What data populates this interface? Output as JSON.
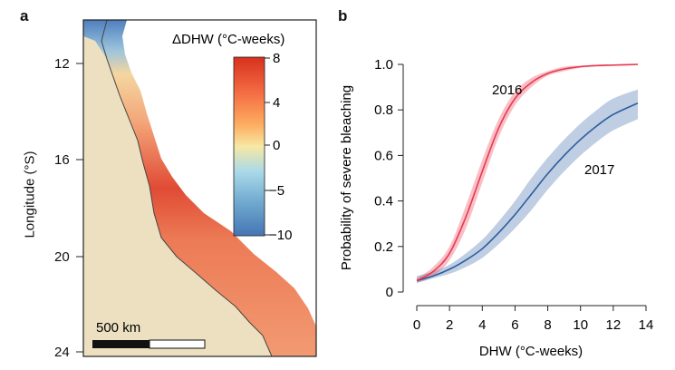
{
  "panel_a": {
    "letter": "a",
    "y_axis_title": "Longitude (°S)",
    "y_ticks": [
      "12",
      "16",
      "20",
      "24"
    ],
    "colorbar": {
      "title": "ΔDHW (°C-weeks)",
      "ticks": [
        "8",
        "4",
        "0",
        "−5",
        "−10"
      ],
      "colors": [
        "#d7301f",
        "#f46d43",
        "#fdae61",
        "#f6e8a4",
        "#abd9e9",
        "#74add1",
        "#4575b4"
      ]
    },
    "scale_bar": {
      "label": "500 km"
    },
    "colors": {
      "land": "#ede0c0",
      "frame": "#222222"
    }
  },
  "panel_b": {
    "letter": "b",
    "series_colors": {
      "2016": "#e8394f",
      "2017": "#2b5d9e"
    }
  },
  "chart_data": {
    "type": "line",
    "title": "",
    "xlabel": "DHW (°C-weeks)",
    "ylabel": "Probability of severe bleaching",
    "xlim": [
      0,
      14
    ],
    "ylim": [
      0,
      1
    ],
    "xticks": [
      0,
      2,
      4,
      6,
      8,
      10,
      12,
      14
    ],
    "yticks": [
      0,
      0.2,
      0.4,
      0.6,
      0.8,
      1.0
    ],
    "ytick_labels": [
      "0",
      "0.2",
      "0.4",
      "0.6",
      "0.8",
      "1.0"
    ],
    "series": [
      {
        "name": "2016",
        "label": "2016",
        "x": [
          0,
          1,
          2,
          3,
          4,
          5,
          6,
          7,
          8,
          9,
          10,
          11,
          12,
          13.5
        ],
        "y": [
          0.05,
          0.09,
          0.17,
          0.33,
          0.53,
          0.72,
          0.85,
          0.92,
          0.96,
          0.98,
          0.99,
          0.995,
          0.997,
          1.0
        ],
        "lo": [
          0.04,
          0.07,
          0.14,
          0.28,
          0.48,
          0.68,
          0.82,
          0.9,
          0.95,
          0.97,
          0.985,
          0.99,
          0.993,
          0.996
        ],
        "hi": [
          0.06,
          0.11,
          0.2,
          0.38,
          0.58,
          0.76,
          0.88,
          0.94,
          0.97,
          0.99,
          0.995,
          0.998,
          1.0,
          1.0
        ]
      },
      {
        "name": "2017",
        "label": "2017",
        "x": [
          0,
          1,
          2,
          3,
          4,
          5,
          6,
          7,
          8,
          9,
          10,
          11,
          12,
          13.5
        ],
        "y": [
          0.05,
          0.07,
          0.1,
          0.14,
          0.19,
          0.26,
          0.34,
          0.43,
          0.52,
          0.6,
          0.67,
          0.73,
          0.78,
          0.83
        ],
        "lo": [
          0.04,
          0.06,
          0.08,
          0.11,
          0.15,
          0.21,
          0.28,
          0.36,
          0.45,
          0.53,
          0.6,
          0.66,
          0.71,
          0.76
        ],
        "hi": [
          0.07,
          0.09,
          0.12,
          0.17,
          0.23,
          0.31,
          0.4,
          0.5,
          0.59,
          0.67,
          0.74,
          0.8,
          0.85,
          0.89
        ]
      }
    ]
  }
}
